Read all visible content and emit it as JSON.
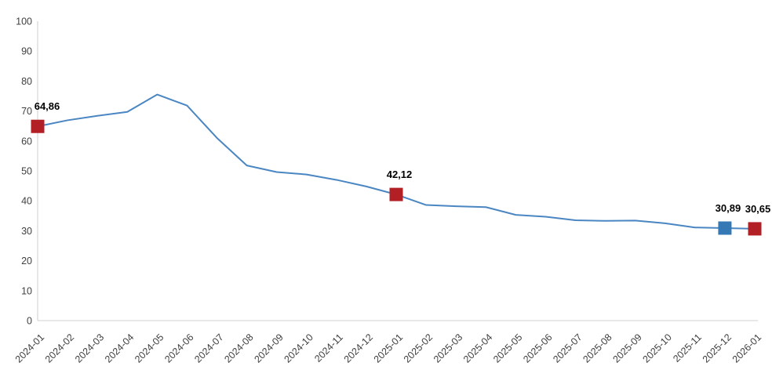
{
  "chart_data": {
    "type": "line",
    "title": "",
    "xlabel": "",
    "ylabel": "",
    "x": [
      "2024-01",
      "2024-02",
      "2024-03",
      "2024-04",
      "2024-05",
      "2024-06",
      "2024-07",
      "2024-08",
      "2024-09",
      "2024-10",
      "2024-11",
      "2024-12",
      "2025-01",
      "2025-02",
      "2025-03",
      "2025-04",
      "2025-05",
      "2025-06",
      "2025-07",
      "2025-08",
      "2025-09",
      "2025-10",
      "2025-11",
      "2025-12",
      "2026-01"
    ],
    "series": [
      {
        "name": "series-1",
        "values": [
          64.86,
          66.9,
          68.4,
          69.7,
          75.5,
          71.8,
          61.0,
          51.8,
          49.6,
          48.8,
          47.0,
          44.8,
          42.12,
          38.6,
          38.2,
          37.9,
          35.3,
          34.7,
          33.5,
          33.3,
          33.4,
          32.5,
          31.1,
          30.89,
          30.65
        ]
      }
    ],
    "ylim": [
      0,
      100
    ],
    "yticks": [
      0,
      10,
      20,
      30,
      40,
      50,
      60,
      70,
      80,
      90,
      100
    ],
    "grid": false,
    "legend": "none",
    "markers": [
      {
        "x": "2024-01",
        "value": 64.86,
        "label": "64,86",
        "color": "#b21f24"
      },
      {
        "x": "2025-01",
        "value": 42.12,
        "label": "42,12",
        "color": "#b21f24"
      },
      {
        "x": "2025-12",
        "value": 30.89,
        "label": "30,89",
        "color": "#3478b5"
      },
      {
        "x": "2026-01",
        "value": 30.65,
        "label": "30,65",
        "color": "#b21f24"
      }
    ],
    "colors": {
      "line": "#4a86c2",
      "axis": "#d9d9d9",
      "tick_label": "#404040",
      "data_label": "#000000",
      "background": "#ffffff"
    }
  }
}
